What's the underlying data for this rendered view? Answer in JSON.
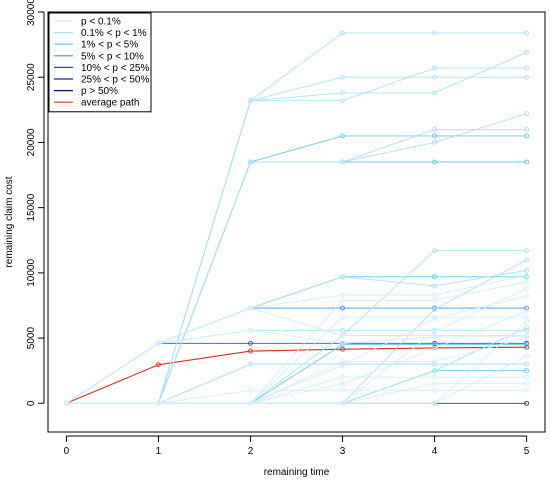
{
  "chart_data": {
    "type": "line",
    "xlabel": "remaining time",
    "ylabel": "remaining claim cost",
    "xlim": [
      -0.2,
      5.2
    ],
    "ylim": [
      -2200,
      30000
    ],
    "x_ticks": [
      0,
      1,
      2,
      3,
      4,
      5
    ],
    "y_ticks": [
      0,
      5000,
      10000,
      15000,
      20000,
      25000,
      30000
    ],
    "legend_position": "top-left",
    "legend": [
      {
        "label": "p < 0.1%",
        "color": "#cfeefa"
      },
      {
        "label": "0.1% < p < 1%",
        "color": "#a8dff3"
      },
      {
        "label": "1% < p < 5%",
        "color": "#5cc8e8"
      },
      {
        "label": "5% < p < 10%",
        "color": "#3a8fe0"
      },
      {
        "label": "10% < p < 25%",
        "color": "#3040d0"
      },
      {
        "label": "25% < p < 50%",
        "color": "#1a2a90"
      },
      {
        "label": "p > 50%",
        "color": "#0a1060"
      },
      {
        "label": "average path",
        "color": "#d03020"
      }
    ],
    "series": [
      {
        "name": "average path",
        "color": "#d03020",
        "x": [
          0,
          1,
          2,
          3,
          4,
          5
        ],
        "y": [
          0,
          2950,
          4000,
          4150,
          4250,
          4300
        ]
      },
      {
        "color": "#3040d0",
        "x": [
          0,
          1,
          2,
          3,
          4,
          5
        ],
        "y": [
          0,
          4600,
          4600,
          4600,
          4600,
          4600
        ]
      },
      {
        "color": "#1a2a90",
        "x": [
          0,
          1,
          2,
          3,
          4,
          5
        ],
        "y": [
          0,
          0,
          0,
          0,
          0,
          0
        ]
      },
      {
        "color": "#3a8fe0",
        "x": [
          0,
          1,
          2,
          3,
          4,
          5
        ],
        "y": [
          0,
          4600,
          7300,
          7300,
          7300,
          7300
        ]
      },
      {
        "color": "#3a8fe0",
        "x": [
          0,
          1,
          2,
          3,
          4,
          5
        ],
        "y": [
          0,
          0,
          3000,
          3000,
          3000,
          3000
        ]
      },
      {
        "color": "#5cc8e8",
        "x": [
          0,
          1,
          2,
          3,
          4,
          5
        ],
        "y": [
          0,
          0,
          18500,
          18500,
          18500,
          18500
        ]
      },
      {
        "color": "#5cc8e8",
        "x": [
          0,
          1,
          2,
          3,
          4,
          5
        ],
        "y": [
          0,
          0,
          18500,
          20500,
          20500,
          20500
        ]
      },
      {
        "color": "#5cc8e8",
        "x": [
          0,
          1,
          2,
          3,
          4,
          5
        ],
        "y": [
          0,
          0,
          0,
          4500,
          4500,
          4500
        ]
      },
      {
        "color": "#5cc8e8",
        "x": [
          0,
          1,
          2,
          3,
          4,
          5
        ],
        "y": [
          0,
          0,
          0,
          0,
          2500,
          2500
        ]
      },
      {
        "color": "#5cc8e8",
        "x": [
          0,
          1,
          2,
          3,
          4,
          5
        ],
        "y": [
          0,
          4600,
          7300,
          9700,
          9700,
          9700
        ]
      },
      {
        "color": "#a8dff3",
        "x": [
          0,
          1,
          2,
          3,
          4,
          5
        ],
        "y": [
          0,
          0,
          23200,
          28400,
          28400,
          28400
        ]
      },
      {
        "color": "#a8dff3",
        "x": [
          0,
          1,
          2,
          3,
          4,
          5
        ],
        "y": [
          0,
          0,
          23200,
          25000,
          25000,
          25000
        ]
      },
      {
        "color": "#a8dff3",
        "x": [
          0,
          1,
          2,
          3,
          4,
          5
        ],
        "y": [
          0,
          0,
          23200,
          23200,
          25700,
          25700
        ]
      },
      {
        "color": "#a8dff3",
        "x": [
          0,
          1,
          2,
          3,
          4,
          5
        ],
        "y": [
          0,
          0,
          23200,
          23800,
          23800,
          26900
        ]
      },
      {
        "color": "#a8dff3",
        "x": [
          0,
          1,
          2,
          3,
          4,
          5
        ],
        "y": [
          0,
          0,
          18500,
          18500,
          21000,
          21000
        ]
      },
      {
        "color": "#a8dff3",
        "x": [
          0,
          1,
          2,
          3,
          4,
          5
        ],
        "y": [
          0,
          0,
          18500,
          18500,
          20000,
          22200
        ]
      },
      {
        "color": "#a8dff3",
        "x": [
          0,
          1,
          2,
          3,
          4,
          5
        ],
        "y": [
          0,
          0,
          0,
          5200,
          11700,
          11700
        ]
      },
      {
        "color": "#a8dff3",
        "x": [
          0,
          1,
          2,
          3,
          4,
          5
        ],
        "y": [
          0,
          0,
          0,
          0,
          7200,
          11000
        ]
      },
      {
        "color": "#a8dff3",
        "x": [
          0,
          1,
          2,
          3,
          4,
          5
        ],
        "y": [
          0,
          4600,
          7300,
          9700,
          9000,
          10200
        ]
      },
      {
        "color": "#a8dff3",
        "x": [
          0,
          1,
          2,
          3,
          4,
          5
        ],
        "y": [
          0,
          4600,
          5600,
          5600,
          5600,
          5600
        ]
      },
      {
        "color": "#a8dff3",
        "x": [
          0,
          1,
          2,
          3,
          4,
          5
        ],
        "y": [
          0,
          0,
          0,
          0,
          2500,
          5800
        ]
      },
      {
        "color": "#cfeefa",
        "x": [
          0,
          1,
          2,
          3,
          4,
          5
        ],
        "y": [
          0,
          0,
          1000,
          1000,
          1000,
          1000
        ]
      },
      {
        "color": "#cfeefa",
        "x": [
          0,
          1,
          2,
          3,
          4,
          5
        ],
        "y": [
          0,
          0,
          3000,
          3000,
          3000,
          3000
        ]
      },
      {
        "color": "#cfeefa",
        "x": [
          0,
          1,
          2,
          3,
          4,
          5
        ],
        "y": [
          0,
          0,
          0,
          2900,
          6500,
          8200
        ]
      },
      {
        "color": "#cfeefa",
        "x": [
          0,
          1,
          2,
          3,
          4,
          5
        ],
        "y": [
          0,
          0,
          0,
          7900,
          7900,
          9300
        ]
      },
      {
        "color": "#cfeefa",
        "x": [
          0,
          1,
          2,
          3,
          4,
          5
        ],
        "y": [
          0,
          0,
          0,
          1500,
          4200,
          7100
        ]
      },
      {
        "color": "#cfeefa",
        "x": [
          0,
          1,
          2,
          3,
          4,
          5
        ],
        "y": [
          0,
          0,
          0,
          0,
          5500,
          8800
        ]
      },
      {
        "color": "#cfeefa",
        "x": [
          0,
          1,
          2,
          3,
          4,
          5
        ],
        "y": [
          0,
          0,
          0,
          0,
          0,
          6300
        ]
      },
      {
        "color": "#cfeefa",
        "x": [
          0,
          1,
          2,
          3,
          4,
          5
        ],
        "y": [
          0,
          0,
          0,
          0,
          0,
          3600
        ]
      },
      {
        "color": "#cfeefa",
        "x": [
          0,
          1,
          2,
          3,
          4,
          5
        ],
        "y": [
          0,
          0,
          0,
          6600,
          6600,
          6600
        ]
      },
      {
        "color": "#cfeefa",
        "x": [
          0,
          1,
          2,
          3,
          4,
          5
        ],
        "y": [
          0,
          4600,
          7300,
          8300,
          8300,
          9800
        ]
      },
      {
        "color": "#cfeefa",
        "x": [
          0,
          1,
          2,
          3,
          4,
          5
        ],
        "y": [
          0,
          4600,
          7300,
          5200,
          5200,
          5200
        ]
      },
      {
        "color": "#cfeefa",
        "x": [
          0,
          1,
          2,
          3,
          4,
          5
        ],
        "y": [
          0,
          4600,
          5600,
          4600,
          5100,
          5100
        ]
      },
      {
        "color": "#cfeefa",
        "x": [
          0,
          1,
          2,
          3,
          4,
          5
        ],
        "y": [
          0,
          0,
          0,
          3200,
          3200,
          5000
        ]
      },
      {
        "color": "#cfeefa",
        "x": [
          0,
          1,
          2,
          3,
          4,
          5
        ],
        "y": [
          0,
          0,
          0,
          0,
          1500,
          1500
        ]
      },
      {
        "color": "#cfeefa",
        "x": [
          0,
          1,
          2,
          3,
          4,
          5
        ],
        "y": [
          0,
          0,
          0,
          2000,
          2000,
          2000
        ]
      }
    ]
  }
}
